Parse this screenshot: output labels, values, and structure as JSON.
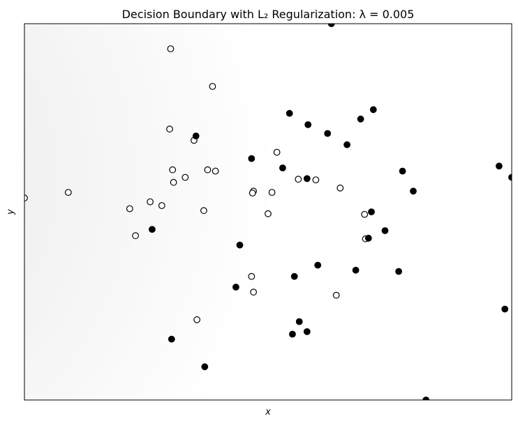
{
  "chart_data": {
    "type": "scatter",
    "title": "Decision Boundary with L₂ Regularization: λ = 0.005",
    "xlabel": "x",
    "ylabel": "y",
    "xlim": [
      -2.5,
      2.5
    ],
    "ylim": [
      -3.0,
      3.0
    ],
    "grid": false,
    "legend": false,
    "ticks": false,
    "background": {
      "description": "shaded decision region",
      "left_color": "#e6e6e6",
      "right_color": "#ffffff"
    },
    "series": [
      {
        "class": "class-0",
        "marker": "open-circle",
        "color": "#000000",
        "points": [
          [
            -1.0,
            2.6
          ],
          [
            -0.57,
            2.0
          ],
          [
            -1.01,
            1.32
          ],
          [
            -0.76,
            1.14
          ],
          [
            0.09,
            0.95
          ],
          [
            -0.98,
            0.67
          ],
          [
            -0.62,
            0.67
          ],
          [
            -0.85,
            0.55
          ],
          [
            -0.54,
            0.65
          ],
          [
            -0.97,
            0.47
          ],
          [
            0.31,
            0.52
          ],
          [
            0.49,
            0.51
          ],
          [
            -0.15,
            0.33
          ],
          [
            -0.16,
            0.3
          ],
          [
            0.04,
            0.31
          ],
          [
            0.74,
            0.38
          ],
          [
            -2.05,
            0.31
          ],
          [
            -2.5,
            0.22
          ],
          [
            -1.21,
            0.16
          ],
          [
            -1.42,
            0.05
          ],
          [
            -1.09,
            0.1
          ],
          [
            -0.66,
            0.02
          ],
          [
            0.0,
            -0.03
          ],
          [
            0.99,
            -0.04
          ],
          [
            -1.36,
            -0.38
          ],
          [
            1.0,
            -0.43
          ],
          [
            -0.17,
            -1.03
          ],
          [
            -0.15,
            -1.28
          ],
          [
            0.7,
            -1.33
          ],
          [
            -0.73,
            -1.72
          ]
        ]
      },
      {
        "class": "class-1",
        "marker": "filled-circle",
        "color": "#000000",
        "points": [
          [
            0.65,
            3.0
          ],
          [
            1.08,
            1.63
          ],
          [
            0.22,
            1.57
          ],
          [
            0.95,
            1.48
          ],
          [
            0.41,
            1.39
          ],
          [
            0.61,
            1.25
          ],
          [
            0.81,
            1.07
          ],
          [
            -0.74,
            1.21
          ],
          [
            -0.17,
            0.85
          ],
          [
            0.15,
            0.7
          ],
          [
            0.4,
            0.53
          ],
          [
            1.38,
            0.65
          ],
          [
            1.49,
            0.33
          ],
          [
            2.37,
            0.73
          ],
          [
            2.5,
            0.55
          ],
          [
            1.06,
            0.0
          ],
          [
            1.2,
            -0.3
          ],
          [
            -1.19,
            -0.28
          ],
          [
            -0.29,
            -0.53
          ],
          [
            1.03,
            -0.42
          ],
          [
            0.9,
            -0.93
          ],
          [
            1.34,
            -0.95
          ],
          [
            0.27,
            -1.03
          ],
          [
            -0.33,
            -1.2
          ],
          [
            0.51,
            -0.85
          ],
          [
            2.43,
            -1.55
          ],
          [
            0.32,
            -1.75
          ],
          [
            0.4,
            -1.91
          ],
          [
            0.25,
            -1.95
          ],
          [
            -0.99,
            -2.03
          ],
          [
            -0.65,
            -2.47
          ],
          [
            1.62,
            -3.0
          ]
        ]
      }
    ]
  }
}
